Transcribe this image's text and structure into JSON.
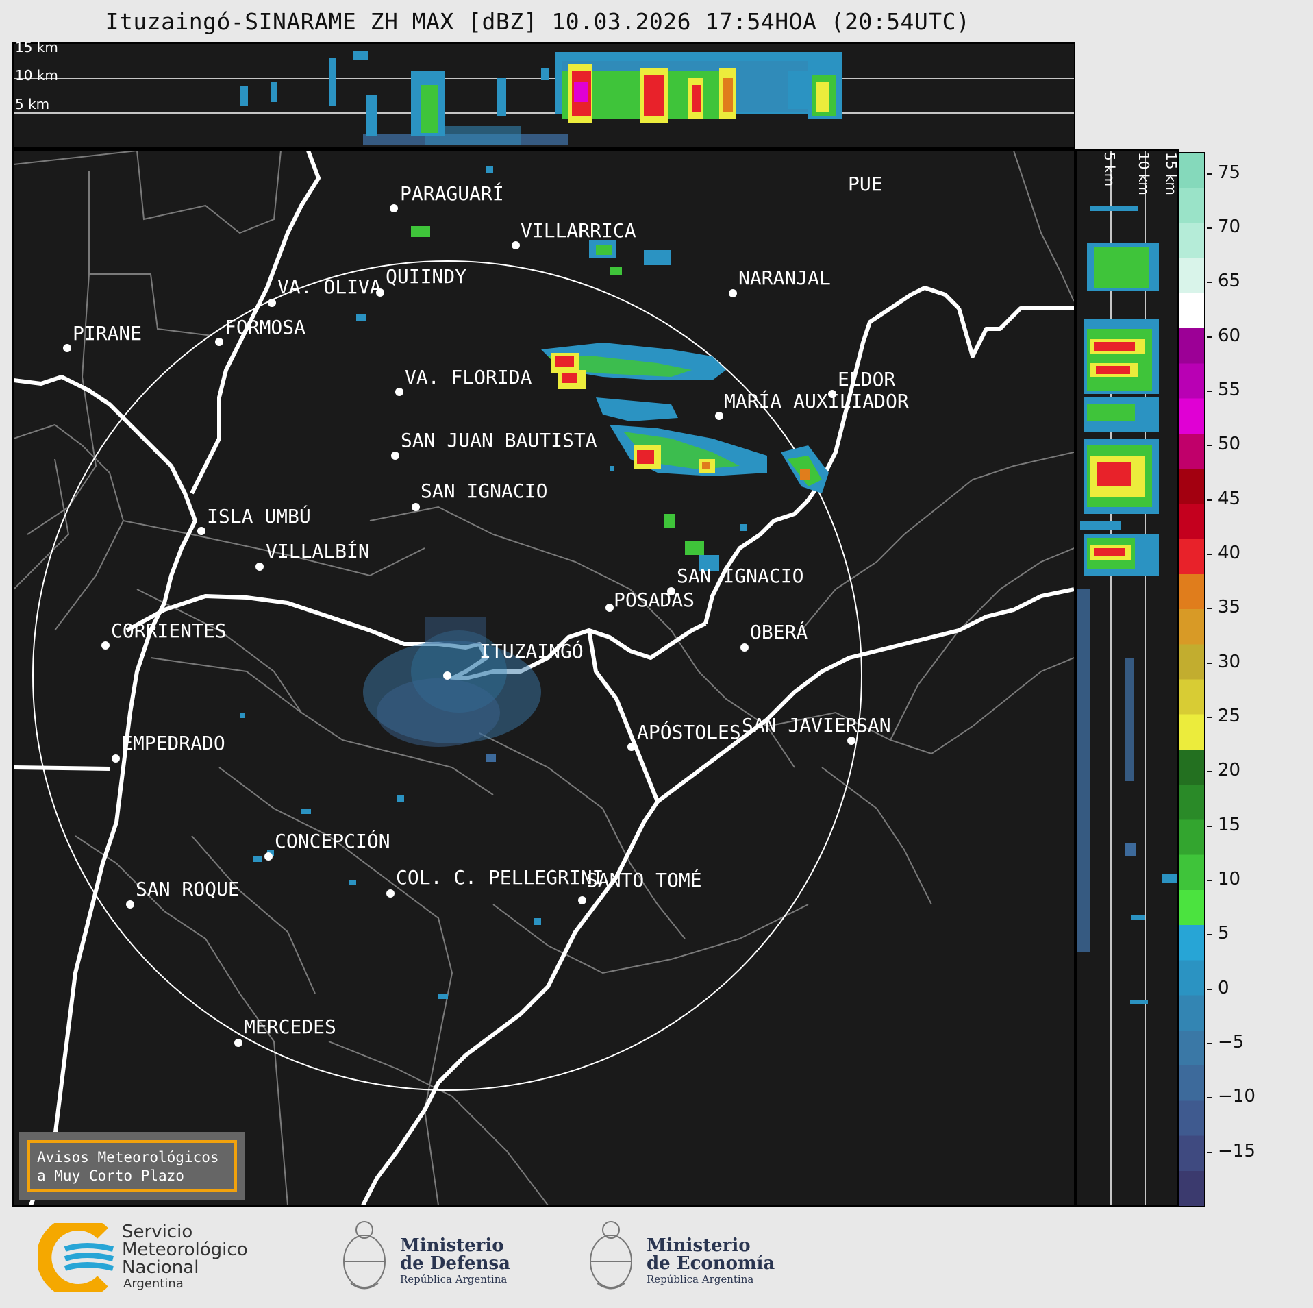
{
  "title": "Ituzaingó-SINARAME ZH MAX [dBZ] 10.03.2026 17:54HOA (20:54UTC)",
  "altitude_labels": {
    "km15": "15 km",
    "km10": "10 km",
    "km5": "5 km"
  },
  "colorbar": {
    "ticks": [
      "75",
      "70",
      "65",
      "60",
      "55",
      "50",
      "45",
      "40",
      "35",
      "30",
      "25",
      "20",
      "15",
      "10",
      "5",
      "0",
      "−5",
      "−10",
      "−15"
    ],
    "colors": [
      "#3b3a6e",
      "#3f4a80",
      "#3f5a8f",
      "#3d6a9b",
      "#3a78a6",
      "#3385b3",
      "#2b93c2",
      "#27a5d6",
      "#4be33f",
      "#3fc43a",
      "#33a52f",
      "#2a8a28",
      "#237020",
      "#ecec3c",
      "#d8cc34",
      "#c2ad2f",
      "#d89a26",
      "#e07d1c",
      "#e8222a",
      "#c4001e",
      "#a30010",
      "#c0006a",
      "#e000d4",
      "#b900b4",
      "#9c0096",
      "#ffffff",
      "#d9f4ea",
      "#b5ecd8",
      "#9ae3c8",
      "#85d9bb"
    ]
  },
  "cities": [
    {
      "name": "PIRANE"
    },
    {
      "name": "PARAGUARÍ"
    },
    {
      "name": "VILLARRICA"
    },
    {
      "name": "QUIINDY"
    },
    {
      "name": "VA. OLIVA"
    },
    {
      "name": "FORMOSA"
    },
    {
      "name": "NARANJAL"
    },
    {
      "name": "VA. FLORIDA"
    },
    {
      "name": "ELDOR"
    },
    {
      "name": "MARÍA AUXILIADOR"
    },
    {
      "name": "SAN JUAN BAUTISTA"
    },
    {
      "name": "SAN IGNACIO"
    },
    {
      "name": "ISLA UMBÚ"
    },
    {
      "name": "VILLALBÍN"
    },
    {
      "name": "SAN IGNACIO"
    },
    {
      "name": "POSADAS"
    },
    {
      "name": "CORRIENTES"
    },
    {
      "name": "ITUZAINGÓ"
    },
    {
      "name": "OBERÁ"
    },
    {
      "name": "APÓSTOLES"
    },
    {
      "name": "SAN JAVIER"
    },
    {
      "name": "SAN"
    },
    {
      "name": "EMPEDRADO"
    },
    {
      "name": "CONCEPCIÓN"
    },
    {
      "name": "COL. C. PELLEGRINI"
    },
    {
      "name": "SANTO TOMÉ"
    },
    {
      "name": "SAN ROQUE"
    },
    {
      "name": "MERCEDES"
    },
    {
      "name": "PUE"
    }
  ],
  "warning": {
    "line1": "Avisos Meteorológicos",
    "line2": "a Muy Corto Plazo"
  },
  "footer": {
    "smn": {
      "line1": "Servicio",
      "line2": "Meteorológico",
      "line3": "Nacional",
      "line4": "Argentina"
    },
    "defensa": {
      "line1": "Ministerio",
      "line2": "de Defensa",
      "line3": "República Argentina"
    },
    "economia": {
      "line1": "Ministerio",
      "line2": "de Economía",
      "line3": "República Argentina"
    }
  }
}
